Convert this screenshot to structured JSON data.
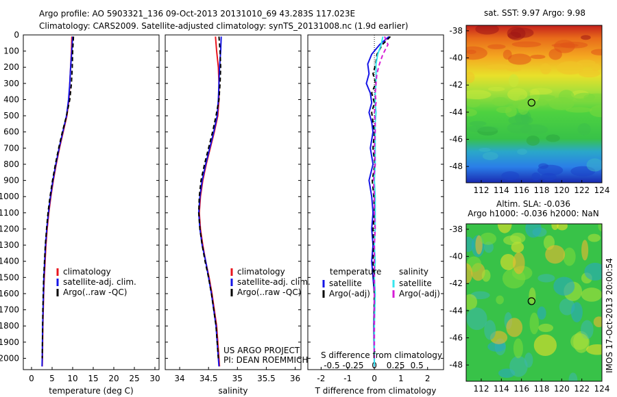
{
  "header": {
    "line1": "Argo profile: AO 5903321_136 09-Oct-2013 20131010_69 43.283S 117.023E",
    "line2": "Climatology: CARS2009. Satellite-adjusted climatology: synTS_20131008.nc (1.9d earlier)"
  },
  "side_stamp": "IMOS 17-Oct-2013 20:00:54",
  "colors": {
    "red": "#e8141c",
    "blue": "#1414e6",
    "black": "#000000",
    "cyan": "#36e6ee",
    "magenta": "#d61cd6"
  },
  "chart_data": [
    {
      "id": "temperature",
      "type": "line",
      "xlabel": "temperature (deg C)",
      "ylabel": "",
      "xlim": [
        -2,
        31
      ],
      "ylim": [
        2070,
        0
      ],
      "x_ticks": [
        0,
        5,
        10,
        15,
        20,
        25,
        30
      ],
      "y_ticks": [
        0,
        100,
        200,
        300,
        400,
        500,
        600,
        700,
        800,
        900,
        1000,
        1100,
        1200,
        1300,
        1400,
        1500,
        1600,
        1700,
        1800,
        1900,
        2000
      ],
      "legend_position": "lower-center",
      "series": [
        {
          "name": "climatology",
          "color": "#e8141c",
          "dash": "",
          "depth": [
            10,
            100,
            200,
            300,
            400,
            500,
            600,
            700,
            800,
            900,
            1000,
            1100,
            1200,
            1300,
            1400,
            1500,
            1600,
            1700,
            1800,
            1900,
            2000,
            2050
          ],
          "values": [
            9.8,
            9.7,
            9.5,
            9.3,
            9.1,
            8.6,
            7.7,
            6.8,
            6.0,
            5.3,
            4.7,
            4.2,
            3.8,
            3.5,
            3.3,
            3.1,
            2.95,
            2.85,
            2.75,
            2.7,
            2.65,
            2.6
          ]
        },
        {
          "name": "satellite-adj. clim.",
          "color": "#1414e6",
          "dash": "",
          "depth": [
            10,
            100,
            200,
            300,
            400,
            500,
            600,
            700,
            800,
            900,
            1000,
            1100,
            1200,
            1300,
            1400,
            1500,
            1600,
            1700,
            1800,
            1900,
            2000,
            2050
          ],
          "values": [
            10.0,
            9.8,
            9.5,
            9.3,
            9.0,
            8.5,
            7.6,
            6.7,
            5.9,
            5.2,
            4.6,
            4.1,
            3.7,
            3.4,
            3.2,
            3.0,
            2.9,
            2.8,
            2.7,
            2.65,
            2.6,
            2.55
          ]
        },
        {
          "name": "Argo(..raw -QC)",
          "color": "#000000",
          "dash": "6,4",
          "depth": [
            10,
            100,
            200,
            300,
            400,
            500,
            600,
            700,
            800,
            900,
            1000,
            1100,
            1200,
            1300,
            1400,
            1500,
            1600,
            1700,
            1800,
            1900,
            2000
          ],
          "values": [
            10.2,
            10.0,
            9.9,
            9.7,
            9.3,
            8.5,
            7.5,
            6.6,
            5.8,
            5.1,
            4.5,
            4.0,
            3.65,
            3.35,
            3.15,
            2.95,
            2.85,
            2.75,
            2.7,
            2.65,
            2.6
          ]
        }
      ]
    },
    {
      "id": "salinity",
      "type": "line",
      "xlabel": "salinity",
      "ylabel": "",
      "xlim": [
        33.75,
        36.1
      ],
      "ylim": [
        2070,
        0
      ],
      "x_ticks": [
        34,
        34.5,
        35,
        35.5,
        36
      ],
      "legend_position": "lower-center",
      "annotation": [
        "US ARGO PROJECT",
        "PI: DEAN ROEMMICH"
      ],
      "series": [
        {
          "name": "climatology",
          "color": "#e8141c",
          "dash": "",
          "depth": [
            10,
            100,
            200,
            300,
            400,
            500,
            600,
            700,
            800,
            900,
            1000,
            1100,
            1200,
            1300,
            1400,
            1500,
            1600,
            1700,
            1800,
            1900,
            2000,
            2050
          ],
          "values": [
            34.62,
            34.64,
            34.67,
            34.68,
            34.68,
            34.66,
            34.6,
            34.53,
            34.46,
            34.4,
            34.36,
            34.34,
            34.36,
            34.4,
            34.45,
            34.51,
            34.56,
            34.6,
            34.64,
            34.66,
            34.68,
            34.69
          ]
        },
        {
          "name": "satellite-adj. clim.",
          "color": "#1414e6",
          "dash": "",
          "depth": [
            10,
            100,
            200,
            300,
            400,
            500,
            600,
            700,
            800,
            900,
            1000,
            1100,
            1200,
            1300,
            1400,
            1500,
            1600,
            1700,
            1800,
            1900,
            2000,
            2050
          ],
          "values": [
            34.72,
            34.71,
            34.69,
            34.68,
            34.67,
            34.65,
            34.59,
            34.52,
            34.45,
            34.39,
            34.35,
            34.33,
            34.35,
            34.39,
            34.45,
            34.5,
            34.55,
            34.59,
            34.63,
            34.65,
            34.67,
            34.68
          ]
        },
        {
          "name": "Argo(..raw -QC)",
          "color": "#000000",
          "dash": "6,4",
          "depth": [
            10,
            100,
            200,
            300,
            400,
            500,
            600,
            700,
            800,
            900,
            1000,
            1100,
            1200,
            1300,
            1400,
            1500,
            1600,
            1700,
            1800,
            1900,
            2000
          ],
          "values": [
            34.68,
            34.7,
            34.71,
            34.7,
            34.68,
            34.63,
            34.57,
            34.5,
            34.43,
            34.37,
            34.34,
            34.33,
            34.35,
            34.39,
            34.44,
            34.5,
            34.55,
            34.59,
            34.63,
            34.65,
            34.67
          ]
        }
      ]
    },
    {
      "id": "differences",
      "type": "line",
      "xlabel": "T difference from climatology",
      "xlabel_top": "S difference from climatology",
      "xlim": [
        -2.5,
        2.6
      ],
      "ylim": [
        2070,
        0
      ],
      "x_ticks": [
        -2,
        -1,
        0,
        1,
        2
      ],
      "x_tick_labels": [
        "-2",
        "-1",
        "0",
        "1",
        "2"
      ],
      "s_ticks": [
        -0.5,
        -0.25,
        0,
        0.25,
        0.5
      ],
      "s_tick_labels": [
        "-0.5",
        "-0.25",
        "0",
        "0.25",
        "0.5"
      ],
      "legend_position": "lower-center",
      "legend_headers": [
        "temperature",
        "salinity"
      ],
      "series": [
        {
          "name": "satellite",
          "group": "temperature",
          "color": "#1414e6",
          "dash": "",
          "depth": [
            10,
            60,
            120,
            180,
            240,
            300,
            360,
            420,
            480,
            540,
            600,
            700,
            800,
            900,
            1000,
            1100,
            1200,
            1300,
            1400,
            1500,
            1600,
            1800,
            2050
          ],
          "values": [
            0.55,
            0.2,
            -0.1,
            -0.25,
            -0.2,
            -0.3,
            -0.15,
            -0.1,
            -0.2,
            -0.1,
            -0.05,
            -0.15,
            -0.05,
            -0.2,
            -0.1,
            -0.05,
            -0.1,
            -0.05,
            -0.1,
            -0.05,
            0,
            -0.02,
            0
          ]
        },
        {
          "name": "Argo(-adj)",
          "group": "temperature",
          "color": "#000000",
          "dash": "6,4",
          "depth": [
            10,
            60,
            120,
            180,
            240,
            300,
            360,
            420,
            480,
            540,
            600,
            700,
            800,
            900,
            1000,
            1100,
            1200,
            1300,
            1400,
            1500,
            1600,
            1800,
            2000
          ],
          "values": [
            0.6,
            0.3,
            0.1,
            0.05,
            -0.05,
            0.05,
            -0.1,
            0,
            -0.1,
            -0.05,
            0,
            -0.05,
            0.02,
            -0.08,
            -0.02,
            0,
            -0.05,
            -0.03,
            -0.05,
            -0.02,
            0,
            -0.01,
            0
          ]
        },
        {
          "name": "satellite",
          "group": "salinity",
          "color": "#36e6ee",
          "dash": "",
          "depth": [
            10,
            60,
            120,
            180,
            240,
            300,
            360,
            420,
            480,
            540,
            600,
            700,
            800,
            900,
            1000,
            1100,
            1200,
            1300,
            1400,
            1500,
            1600,
            1800,
            2050
          ],
          "values": [
            0.1,
            0.08,
            0.04,
            0.02,
            0.02,
            0.02,
            0.01,
            0.01,
            0.02,
            0.01,
            0.01,
            0.01,
            0.01,
            0,
            0.01,
            0.01,
            0.01,
            0,
            0.01,
            0,
            0.01,
            0,
            0
          ]
        },
        {
          "name": "Argo(-adj)",
          "group": "salinity",
          "color": "#d61cd6",
          "dash": "6,4",
          "depth": [
            10,
            60,
            120,
            180,
            240,
            300,
            360,
            420,
            480,
            540,
            600,
            700,
            800,
            900,
            1000,
            1100,
            1200,
            1300,
            1400,
            1500,
            1600,
            1800,
            2000
          ],
          "values": [
            0.12,
            0.16,
            0.1,
            0.06,
            0.03,
            0.02,
            0.01,
            0.02,
            0,
            0.01,
            0.01,
            0,
            0.01,
            -0.01,
            0,
            0,
            0.01,
            0,
            0,
            0,
            0,
            0,
            0
          ]
        }
      ]
    },
    {
      "id": "sst_map",
      "type": "heatmap",
      "title": "sat. SST: 9.97  Argo: 9.98",
      "x_ticks": [
        112,
        114,
        116,
        118,
        120,
        122,
        124
      ],
      "y_ticks": [
        -38,
        -40,
        -42,
        -44,
        -46,
        -48
      ],
      "xlim": [
        110.5,
        124
      ],
      "ylim": [
        -49.2,
        -37.6
      ],
      "marker": {
        "lon": 117.0,
        "lat": -43.3
      }
    },
    {
      "id": "sla_map",
      "type": "heatmap",
      "title_lines": [
        "Altim. SLA: -0.036",
        "Argo h1000: -0.036 h2000: NaN"
      ],
      "x_ticks": [
        112,
        114,
        116,
        118,
        120,
        122,
        124
      ],
      "y_ticks": [
        -38,
        -40,
        -42,
        -44,
        -46,
        -48
      ],
      "xlim": [
        110.5,
        124
      ],
      "ylim": [
        -49.2,
        -37.6
      ],
      "marker": {
        "lon": 117.0,
        "lat": -43.3
      }
    }
  ]
}
